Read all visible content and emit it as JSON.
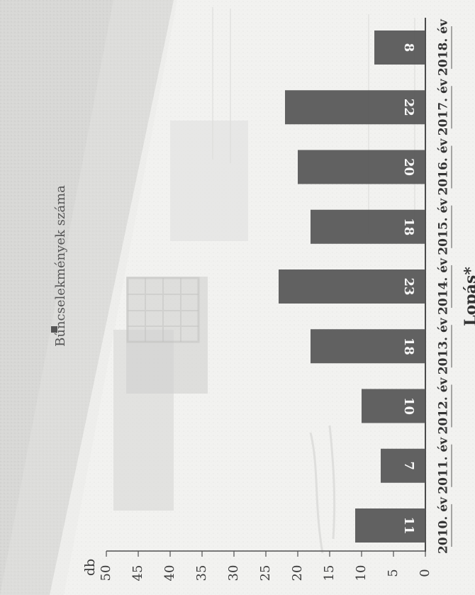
{
  "chart_data": {
    "type": "bar",
    "orientation": "rotated-90",
    "categories": [
      "2010. év",
      "2011. év",
      "2012. év",
      "2013. év",
      "2014. év",
      "2015. év",
      "2016. év",
      "2017. év",
      "2018. év"
    ],
    "series": [
      {
        "name": "Bűncselekmények száma",
        "values": [
          11,
          7,
          10,
          18,
          23,
          18,
          20,
          22,
          8
        ]
      }
    ],
    "data_labels": [
      "11",
      "7",
      "10",
      "18",
      "23",
      "18",
      "20",
      "22",
      "8"
    ],
    "title": "Lopás*",
    "xlabel": "",
    "ylabel": "db",
    "ylim": [
      0,
      50
    ],
    "y_ticks": [
      "0",
      "5",
      "10",
      "15",
      "20",
      "25",
      "30",
      "35",
      "40",
      "45",
      "50"
    ],
    "grid": false,
    "legend_position": "top",
    "colors": {
      "bar": "#555555",
      "label": "#f7f7f7",
      "text": "#3c3c3c"
    }
  }
}
